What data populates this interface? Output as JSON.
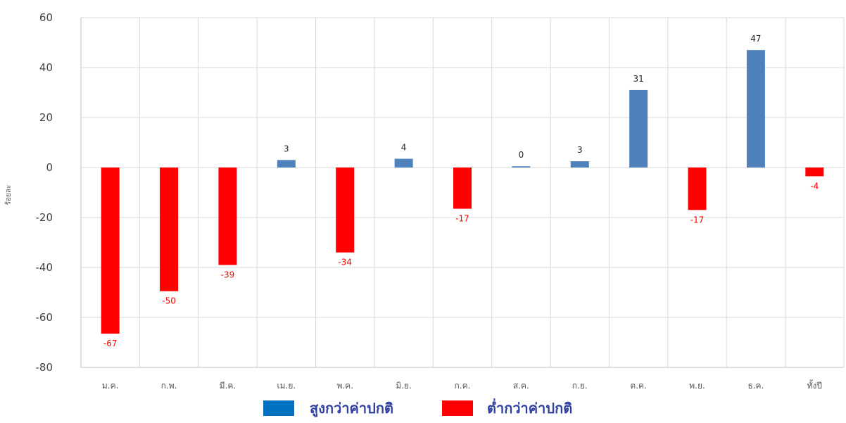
{
  "chart_data": {
    "type": "bar",
    "categories": [
      "ม.ค.",
      "ก.พ.",
      "มี.ค.",
      "เม.ย.",
      "พ.ค.",
      "มิ.ย.",
      "ก.ค.",
      "ส.ค.",
      "ก.ย.",
      "ต.ค.",
      "พ.ย.",
      "ธ.ค.",
      "ทั้งปี"
    ],
    "values": [
      -67,
      -50,
      -39,
      3,
      -34,
      4,
      -17,
      0,
      3,
      31,
      -17,
      47,
      -4
    ],
    "bar_values_exact": [
      -66.5,
      -49.5,
      -39,
      3,
      -34,
      3.5,
      -16.5,
      0.5,
      2.5,
      31,
      -17,
      47,
      -3.5
    ],
    "ylabel": "ร้อยละ",
    "xlabel": "",
    "ylim": [
      -80,
      60
    ],
    "yticks": [
      60,
      40,
      20,
      0,
      -20,
      -40,
      -60,
      -80
    ],
    "grid": true,
    "colors": {
      "above": "#4f81bd",
      "below": "#ff0000"
    },
    "legend_position": "bottom-center",
    "legend": [
      {
        "label": "สูงกว่าค่าปกติ",
        "color": "#0070c0"
      },
      {
        "label": "ต่ำกว่าค่าปกติ",
        "color": "#ff0000"
      }
    ]
  }
}
